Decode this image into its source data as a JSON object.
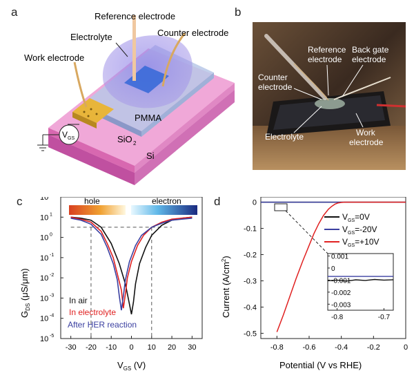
{
  "labels": {
    "a": "a",
    "b": "b",
    "c": "c",
    "d": "d"
  },
  "panel_a": {
    "reference": "Reference electrode",
    "electrolyte": "Electrolyte",
    "counter": "Counter electrode",
    "work": "Work electrode",
    "pmma": "PMMA",
    "sio2": "SiO",
    "sio2_sub": "2",
    "si": "Si",
    "vgs_v": "V",
    "vgs_sub": "GS"
  },
  "panel_b": {
    "reference_1": "Reference",
    "reference_2": "electrode",
    "backgate_1": "Back gate",
    "backgate_2": "electrode",
    "counter_1": "Counter",
    "counter_2": "electrode",
    "electrolyte": "Electrolyte",
    "work_1": "Work",
    "work_2": "electrode"
  },
  "colors": {
    "air": "#111111",
    "electrolyte": "#e02020",
    "after_her": "#3a3fa0",
    "substrate_pink": "#d96bb0",
    "gold": "#e8b53a"
  },
  "chart_data": [
    {
      "type": "line",
      "panel": "c",
      "yscale": "log",
      "xlabel_main": "V",
      "xlabel_sub": "GS",
      "xlabel_unit": " (V)",
      "ylabel_main": "G",
      "ylabel_sub": "DS",
      "ylabel_unit": " (μS/μm)",
      "xlim": [
        -35,
        35
      ],
      "ylim_log10": [
        -5,
        2
      ],
      "xticks": [
        "-30",
        "-20",
        "-10",
        "0",
        "10",
        "20",
        "30"
      ],
      "yticks": [
        "10",
        "10",
        "10",
        "10",
        "10",
        "10",
        "10",
        "10"
      ],
      "ytick_exps": [
        "-5",
        "-4",
        "-3",
        "-2",
        "-1",
        "0",
        "1",
        "2"
      ],
      "bands": {
        "hole": "hole",
        "electron": "electron"
      },
      "legend": {
        "air": "In air",
        "electrolyte": "In electrolyte",
        "after": "After HER reaction"
      },
      "guide_level_log10": 0.5,
      "guide_x": [
        -20,
        10
      ],
      "series": [
        {
          "name": "In air",
          "color_key": "air",
          "x": [
            -30,
            -25,
            -20,
            -15,
            -10,
            -6,
            -3,
            -1,
            0,
            1,
            2,
            4,
            7,
            10,
            15,
            20,
            25,
            30
          ],
          "logy": [
            1.0,
            0.95,
            0.85,
            0.5,
            -0.3,
            -1.3,
            -2.3,
            -3.3,
            -3.8,
            -3.2,
            -2.3,
            -1.3,
            -0.5,
            0.1,
            0.6,
            0.85,
            0.95,
            1.0
          ]
        },
        {
          "name": "In electrolyte",
          "color_key": "electrolyte",
          "x": [
            -30,
            -25,
            -20,
            -15,
            -12,
            -9,
            -7,
            -5,
            -4,
            -3,
            -2,
            0,
            3,
            6,
            10,
            15,
            20,
            25,
            30
          ],
          "logy": [
            1.0,
            0.9,
            0.75,
            0.3,
            -0.3,
            -1.0,
            -1.8,
            -2.6,
            -3.5,
            -2.8,
            -2.0,
            -1.2,
            -0.4,
            0.1,
            0.5,
            0.75,
            0.9,
            0.95,
            1.0
          ]
        },
        {
          "name": "After HER reaction",
          "color_key": "after_her",
          "x": [
            -30,
            -25,
            -20,
            -15,
            -12,
            -9,
            -7,
            -6,
            -5,
            -4,
            -3,
            -1,
            2,
            5,
            10,
            15,
            20,
            25,
            30
          ],
          "logy": [
            0.95,
            0.85,
            0.65,
            0.15,
            -0.5,
            -1.3,
            -2.1,
            -2.9,
            -3.6,
            -2.9,
            -2.1,
            -1.2,
            -0.4,
            0.1,
            0.5,
            0.7,
            0.85,
            0.9,
            0.95
          ]
        }
      ]
    },
    {
      "type": "line",
      "panel": "d",
      "xlabel": "Potential (V vs RHE)",
      "ylabel": "Current (A/cm",
      "ylabel_sup": "2",
      "ylabel_end": ")",
      "xlim": [
        -0.9,
        0
      ],
      "ylim": [
        -0.52,
        0.02
      ],
      "xticks": [
        "-0.8",
        "-0.6",
        "-0.4",
        "-0.2",
        "0"
      ],
      "xtick_vals": [
        -0.8,
        -0.6,
        -0.4,
        -0.2,
        0
      ],
      "yticks": [
        "0",
        "-0.1",
        "-0.2",
        "-0.3",
        "-0.4",
        "-0.5"
      ],
      "ytick_vals": [
        0,
        -0.1,
        -0.2,
        -0.3,
        -0.4,
        -0.5
      ],
      "legend_main": "V",
      "legend_sub": "GS",
      "legend": [
        {
          "suffix": "=0V",
          "color_key": "air"
        },
        {
          "suffix": "=-20V",
          "color_key": "after_her"
        },
        {
          "suffix": "=+10V",
          "color_key": "electrolyte"
        }
      ],
      "series": [
        {
          "name": "=0V",
          "color_key": "air",
          "x": [
            -0.9,
            -0.6,
            -0.4,
            0
          ],
          "y": [
            0,
            0,
            0,
            0
          ]
        },
        {
          "name": "=-20V",
          "color_key": "after_her",
          "x": [
            -0.9,
            -0.6,
            -0.4,
            0
          ],
          "y": [
            0,
            0,
            0,
            0
          ]
        },
        {
          "name": "=+10V",
          "color_key": "electrolyte",
          "x": [
            -0.8,
            -0.76,
            -0.72,
            -0.68,
            -0.64,
            -0.6,
            -0.57,
            -0.54,
            -0.51,
            -0.48,
            -0.46,
            -0.44,
            -0.42,
            -0.4,
            -0.38,
            -0.35,
            -0.3,
            0
          ],
          "y": [
            -0.495,
            -0.43,
            -0.36,
            -0.29,
            -0.225,
            -0.165,
            -0.12,
            -0.082,
            -0.05,
            -0.027,
            -0.016,
            -0.008,
            -0.003,
            -0.001,
            0,
            0,
            0,
            0
          ]
        }
      ],
      "inset": {
        "xlim": [
          -0.82,
          -0.68
        ],
        "ylim": [
          -0.0035,
          0.0012
        ],
        "xticks": [
          "-0.8",
          "-0.7"
        ],
        "xtick_vals": [
          -0.8,
          -0.7
        ],
        "yticks": [
          "0.001",
          "0",
          "-0.001",
          "-0.002",
          "-0.003"
        ],
        "ytick_vals": [
          0.001,
          0,
          -0.001,
          -0.002,
          -0.003
        ],
        "series": [
          {
            "color_key": "after_her",
            "x": [
              -0.82,
              -0.68
            ],
            "y": [
              -0.0007,
              -0.0007
            ]
          },
          {
            "color_key": "air",
            "x": [
              -0.82,
              -0.8,
              -0.78,
              -0.76,
              -0.74,
              -0.72,
              -0.7,
              -0.68
            ],
            "y": [
              -0.00105,
              -0.001,
              -0.00108,
              -0.00098,
              -0.00103,
              -0.00095,
              -0.001,
              -0.00097
            ]
          }
        ]
      }
    }
  ]
}
